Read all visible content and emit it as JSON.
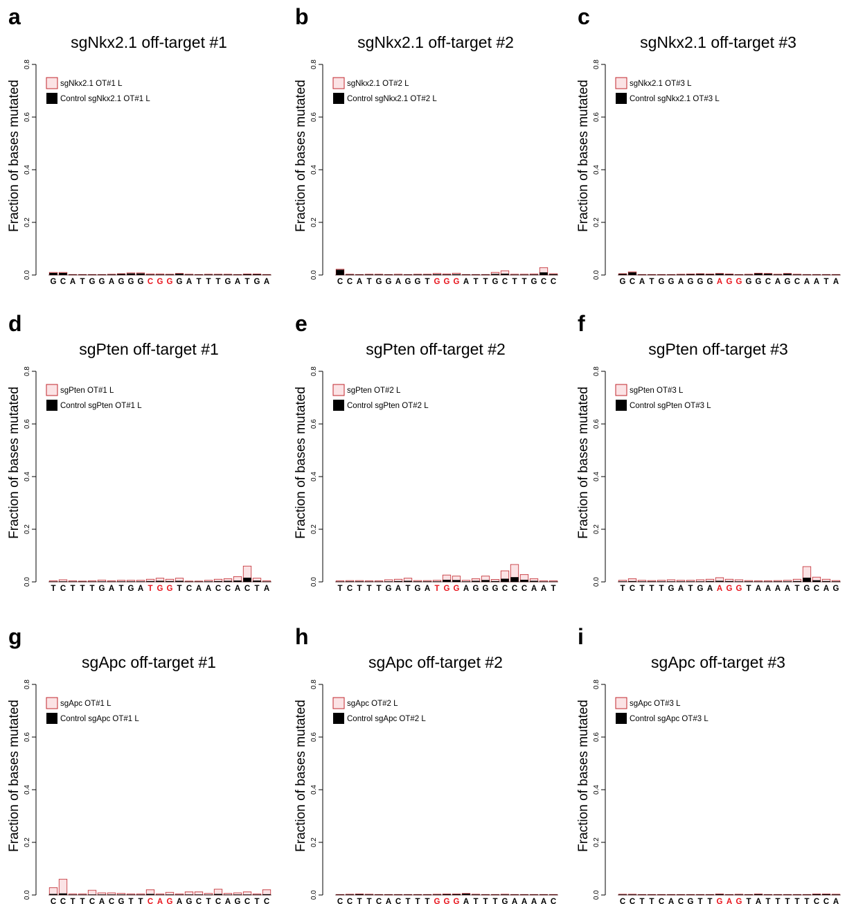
{
  "colors": {
    "treated_fill": "#fbe3e5",
    "treated_stroke": "#c0262c",
    "control": "#000000",
    "pam": "#e8141c"
  },
  "chart_data": [
    {
      "letter": "a",
      "type": "bar",
      "title": "sgNkx2.1 off-target #1",
      "ylabel": "Fraction of bases mutated",
      "ylim": [
        0,
        0.8
      ],
      "yticks": [
        "0.0",
        "0.2",
        "0.4",
        "0.6",
        "0.8"
      ],
      "legend": [
        "sgNkx2.1 OT#1 L",
        "Control sgNkx2.1 OT#1 L"
      ],
      "bases": [
        "G",
        "C",
        "A",
        "T",
        "G",
        "G",
        "A",
        "G",
        "G",
        "G",
        "C",
        "G",
        "G",
        "G",
        "A",
        "T",
        "T",
        "T",
        "G",
        "A",
        "T",
        "G",
        "A"
      ],
      "pam": [
        10,
        11,
        12
      ],
      "series": [
        {
          "name": "sgNkx2.1 OT#1 L",
          "values": [
            0.01,
            0.01,
            0.002,
            0.002,
            0.002,
            0.002,
            0.003,
            0.005,
            0.008,
            0.008,
            0.004,
            0.004,
            0.003,
            0.006,
            0.003,
            0.002,
            0.003,
            0.003,
            0.003,
            0.002,
            0.004,
            0.004,
            0.002
          ]
        },
        {
          "name": "Control sgNkx2.1 OT#1 L",
          "values": [
            0.008,
            0.008,
            0.001,
            0.001,
            0.001,
            0.001,
            0.002,
            0.004,
            0.006,
            0.006,
            0.002,
            0.002,
            0.002,
            0.005,
            0.002,
            0.001,
            0.002,
            0.002,
            0.002,
            0.001,
            0.003,
            0.003,
            0.001
          ]
        }
      ]
    },
    {
      "letter": "b",
      "type": "bar",
      "title": "sgNkx2.1 off-target #2",
      "ylabel": "Fraction of bases mutated",
      "ylim": [
        0,
        0.8
      ],
      "yticks": [
        "0.0",
        "0.2",
        "0.4",
        "0.6",
        "0.8"
      ],
      "legend": [
        "sgNkx2.1 OT#2 L",
        "Control sgNkx2.1 OT#2 L"
      ],
      "bases": [
        "C",
        "C",
        "A",
        "T",
        "G",
        "G",
        "A",
        "G",
        "G",
        "T",
        "G",
        "G",
        "G",
        "A",
        "T",
        "T",
        "G",
        "C",
        "T",
        "T",
        "G",
        "C",
        "C"
      ],
      "pam": [
        10,
        11,
        12
      ],
      "series": [
        {
          "name": "sgNkx2.1 OT#2 L",
          "values": [
            0.022,
            0.003,
            0.002,
            0.003,
            0.003,
            0.002,
            0.003,
            0.002,
            0.003,
            0.003,
            0.006,
            0.004,
            0.007,
            0.002,
            0.002,
            0.002,
            0.01,
            0.016,
            0.003,
            0.003,
            0.004,
            0.028,
            0.005
          ]
        },
        {
          "name": "Control sgNkx2.1 OT#2 L",
          "values": [
            0.02,
            0.002,
            0.001,
            0.002,
            0.002,
            0.001,
            0.001,
            0.001,
            0.002,
            0.002,
            0.003,
            0.002,
            0.003,
            0.001,
            0.001,
            0.001,
            0.004,
            0.005,
            0.001,
            0.001,
            0.002,
            0.01,
            0.003
          ]
        }
      ]
    },
    {
      "letter": "c",
      "type": "bar",
      "title": "sgNkx2.1 off-target #3",
      "ylabel": "Fraction of bases mutated",
      "ylim": [
        0,
        0.8
      ],
      "yticks": [
        "0.0",
        "0.2",
        "0.4",
        "0.6",
        "0.8"
      ],
      "legend": [
        "sgNkx2.1 OT#3 L",
        "Control sgNkx2.1 OT#3 L"
      ],
      "bases": [
        "G",
        "C",
        "A",
        "T",
        "G",
        "G",
        "A",
        "G",
        "G",
        "G",
        "A",
        "G",
        "G",
        "G",
        "G",
        "C",
        "A",
        "G",
        "C",
        "A",
        "A",
        "T",
        "A"
      ],
      "pam": [
        10,
        11,
        12
      ],
      "series": [
        {
          "name": "sgNkx2.1 OT#3 L",
          "values": [
            0.005,
            0.012,
            0.002,
            0.002,
            0.002,
            0.002,
            0.003,
            0.004,
            0.005,
            0.004,
            0.006,
            0.004,
            0.002,
            0.003,
            0.007,
            0.006,
            0.003,
            0.006,
            0.003,
            0.002,
            0.002,
            0.002,
            0.002
          ]
        },
        {
          "name": "Control sgNkx2.1 OT#3 L",
          "values": [
            0.004,
            0.01,
            0.001,
            0.001,
            0.001,
            0.001,
            0.002,
            0.003,
            0.004,
            0.003,
            0.005,
            0.003,
            0.001,
            0.002,
            0.006,
            0.005,
            0.002,
            0.005,
            0.002,
            0.001,
            0.001,
            0.001,
            0.001
          ]
        }
      ]
    },
    {
      "letter": "d",
      "type": "bar",
      "title": "sgPten off-target #1",
      "ylabel": "Fraction of bases mutated",
      "ylim": [
        0,
        0.8
      ],
      "yticks": [
        "0.0",
        "0.2",
        "0.4",
        "0.6",
        "0.8"
      ],
      "legend": [
        "sgPten OT#1 L",
        "Control sgPten OT#1 L"
      ],
      "bases": [
        "T",
        "C",
        "T",
        "T",
        "T",
        "G",
        "A",
        "T",
        "G",
        "A",
        "T",
        "G",
        "G",
        "T",
        "C",
        "A",
        "A",
        "C",
        "C",
        "A",
        "C",
        "T",
        "A"
      ],
      "pam": [
        10,
        11,
        12
      ],
      "series": [
        {
          "name": "sgPten OT#1 L",
          "values": [
            0.004,
            0.008,
            0.004,
            0.003,
            0.004,
            0.007,
            0.004,
            0.006,
            0.006,
            0.006,
            0.01,
            0.014,
            0.01,
            0.014,
            0.003,
            0.003,
            0.006,
            0.01,
            0.012,
            0.02,
            0.06,
            0.014,
            0.004
          ]
        },
        {
          "name": "Control sgPten OT#1 L",
          "values": [
            0.001,
            0.002,
            0.001,
            0.001,
            0.001,
            0.002,
            0.001,
            0.002,
            0.002,
            0.002,
            0.003,
            0.004,
            0.003,
            0.004,
            0.001,
            0.001,
            0.002,
            0.003,
            0.004,
            0.005,
            0.016,
            0.005,
            0.001
          ]
        }
      ]
    },
    {
      "letter": "e",
      "type": "bar",
      "title": "sgPten off-target #2",
      "ylabel": "Fraction of bases mutated",
      "ylim": [
        0,
        0.8
      ],
      "yticks": [
        "0.0",
        "0.2",
        "0.4",
        "0.6",
        "0.8"
      ],
      "legend": [
        "sgPten OT#2 L",
        "Control sgPten OT#2 L"
      ],
      "bases": [
        "T",
        "C",
        "T",
        "T",
        "T",
        "G",
        "A",
        "T",
        "G",
        "A",
        "T",
        "G",
        "G",
        "A",
        "G",
        "G",
        "G",
        "C",
        "C",
        "C",
        "A",
        "A",
        "T"
      ],
      "pam": [
        10,
        11,
        12
      ],
      "series": [
        {
          "name": "sgPten OT#2 L",
          "values": [
            0.004,
            0.005,
            0.005,
            0.004,
            0.004,
            0.008,
            0.01,
            0.014,
            0.005,
            0.005,
            0.006,
            0.026,
            0.022,
            0.006,
            0.012,
            0.022,
            0.009,
            0.042,
            0.066,
            0.028,
            0.012,
            0.004,
            0.004
          ]
        },
        {
          "name": "Control sgPten OT#2 L",
          "values": [
            0.001,
            0.002,
            0.002,
            0.001,
            0.001,
            0.002,
            0.003,
            0.004,
            0.002,
            0.002,
            0.002,
            0.008,
            0.007,
            0.002,
            0.004,
            0.007,
            0.003,
            0.012,
            0.018,
            0.008,
            0.004,
            0.001,
            0.001
          ]
        }
      ]
    },
    {
      "letter": "f",
      "type": "bar",
      "title": "sgPten off-target #3",
      "ylabel": "Fraction of bases mutated",
      "ylim": [
        0,
        0.8
      ],
      "yticks": [
        "0.0",
        "0.2",
        "0.4",
        "0.6",
        "0.8"
      ],
      "legend": [
        "sgPten OT#3 L",
        "Control sgPten OT#3 L"
      ],
      "bases": [
        "T",
        "C",
        "T",
        "T",
        "T",
        "G",
        "A",
        "T",
        "G",
        "A",
        "A",
        "G",
        "G",
        "T",
        "A",
        "A",
        "A",
        "A",
        "T",
        "G",
        "C",
        "A",
        "G"
      ],
      "pam": [
        10,
        11,
        12
      ],
      "series": [
        {
          "name": "sgPten OT#3 L",
          "values": [
            0.006,
            0.012,
            0.006,
            0.005,
            0.006,
            0.008,
            0.006,
            0.006,
            0.008,
            0.01,
            0.016,
            0.01,
            0.008,
            0.005,
            0.004,
            0.004,
            0.005,
            0.006,
            0.01,
            0.058,
            0.018,
            0.01,
            0.005
          ]
        },
        {
          "name": "Control sgPten OT#3 L",
          "values": [
            0.002,
            0.003,
            0.002,
            0.002,
            0.002,
            0.002,
            0.002,
            0.002,
            0.002,
            0.003,
            0.004,
            0.003,
            0.002,
            0.002,
            0.001,
            0.001,
            0.002,
            0.002,
            0.003,
            0.016,
            0.006,
            0.003,
            0.002
          ]
        }
      ]
    },
    {
      "letter": "g",
      "type": "bar",
      "title": "sgApc off-target #1",
      "ylabel": "Fraction of bases mutated",
      "ylim": [
        0,
        0.8
      ],
      "yticks": [
        "0.0",
        "0.2",
        "0.4",
        "0.6",
        "0.8"
      ],
      "legend": [
        "sgApc OT#1 L",
        "Control sgApc OT#1 L"
      ],
      "bases": [
        "C",
        "C",
        "T",
        "T",
        "C",
        "A",
        "C",
        "G",
        "T",
        "T",
        "C",
        "A",
        "G",
        "A",
        "G",
        "C",
        "T",
        "C",
        "A",
        "G",
        "C",
        "T",
        "C"
      ],
      "pam": [
        10,
        11,
        12
      ],
      "series": [
        {
          "name": "sgApc OT#1 L",
          "values": [
            0.028,
            0.06,
            0.004,
            0.004,
            0.018,
            0.008,
            0.008,
            0.006,
            0.004,
            0.004,
            0.02,
            0.004,
            0.01,
            0.004,
            0.012,
            0.012,
            0.006,
            0.022,
            0.006,
            0.008,
            0.012,
            0.004,
            0.02
          ]
        },
        {
          "name": "Control sgApc OT#1 L",
          "values": [
            0.004,
            0.006,
            0.001,
            0.001,
            0.002,
            0.002,
            0.002,
            0.002,
            0.001,
            0.001,
            0.004,
            0.001,
            0.002,
            0.001,
            0.002,
            0.002,
            0.001,
            0.004,
            0.001,
            0.002,
            0.002,
            0.001,
            0.003
          ]
        }
      ]
    },
    {
      "letter": "h",
      "type": "bar",
      "title": "sgApc off-target #2",
      "ylabel": "Fraction of bases mutated",
      "ylim": [
        0,
        0.8
      ],
      "yticks": [
        "0.0",
        "0.2",
        "0.4",
        "0.6",
        "0.8"
      ],
      "legend": [
        "sgApc OT#2 L",
        "Control sgApc OT#2 L"
      ],
      "bases": [
        "C",
        "C",
        "T",
        "T",
        "C",
        "A",
        "C",
        "T",
        "T",
        "T",
        "G",
        "G",
        "G",
        "A",
        "T",
        "T",
        "T",
        "G",
        "A",
        "A",
        "A",
        "A",
        "C"
      ],
      "pam": [
        10,
        11,
        12
      ],
      "series": [
        {
          "name": "sgApc OT#2 L",
          "values": [
            0.002,
            0.003,
            0.004,
            0.003,
            0.002,
            0.002,
            0.002,
            0.002,
            0.002,
            0.002,
            0.003,
            0.004,
            0.004,
            0.006,
            0.003,
            0.002,
            0.002,
            0.003,
            0.002,
            0.002,
            0.002,
            0.002,
            0.002
          ]
        },
        {
          "name": "Control sgApc OT#2 L",
          "values": [
            0.001,
            0.002,
            0.003,
            0.002,
            0.001,
            0.001,
            0.001,
            0.001,
            0.001,
            0.001,
            0.002,
            0.003,
            0.003,
            0.005,
            0.002,
            0.001,
            0.001,
            0.002,
            0.001,
            0.001,
            0.001,
            0.001,
            0.001
          ]
        }
      ]
    },
    {
      "letter": "i",
      "type": "bar",
      "title": "sgApc off-target #3",
      "ylabel": "Fraction of bases mutated",
      "ylim": [
        0,
        0.8
      ],
      "yticks": [
        "0.0",
        "0.2",
        "0.4",
        "0.6",
        "0.8"
      ],
      "legend": [
        "sgApc OT#3 L",
        "Control sgApc OT#3 L"
      ],
      "bases": [
        "C",
        "C",
        "T",
        "T",
        "C",
        "A",
        "C",
        "G",
        "T",
        "T",
        "G",
        "A",
        "G",
        "T",
        "A",
        "T",
        "T",
        "T",
        "T",
        "T",
        "C",
        "C",
        "A"
      ],
      "pam": [
        10,
        11,
        12
      ],
      "series": [
        {
          "name": "sgApc OT#3 L",
          "values": [
            0.003,
            0.003,
            0.002,
            0.002,
            0.002,
            0.002,
            0.002,
            0.002,
            0.002,
            0.002,
            0.004,
            0.002,
            0.003,
            0.002,
            0.004,
            0.002,
            0.002,
            0.002,
            0.002,
            0.002,
            0.004,
            0.004,
            0.003
          ]
        },
        {
          "name": "Control sgApc OT#3 L",
          "values": [
            0.002,
            0.002,
            0.001,
            0.001,
            0.001,
            0.001,
            0.001,
            0.001,
            0.001,
            0.001,
            0.003,
            0.001,
            0.002,
            0.001,
            0.003,
            0.001,
            0.001,
            0.001,
            0.001,
            0.001,
            0.003,
            0.003,
            0.002
          ]
        }
      ]
    }
  ]
}
